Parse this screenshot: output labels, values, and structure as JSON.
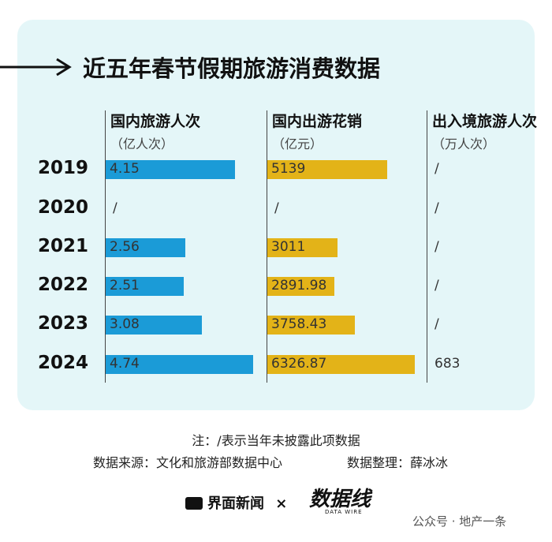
{
  "title": "近五年春节假期旅游消费数据",
  "chart_data": [
    {
      "type": "bar",
      "title": "国内旅游人次",
      "unit": "（亿人次）",
      "categories": [
        "2019",
        "2020",
        "2021",
        "2022",
        "2023",
        "2024"
      ],
      "values": [
        4.15,
        null,
        2.56,
        2.51,
        3.08,
        4.74
      ],
      "color": "#1b9bd7"
    },
    {
      "type": "bar",
      "title": "国内出游花销",
      "unit": "（亿元）",
      "values": [
        5139,
        null,
        3011,
        2891.98,
        3758.43,
        6326.87
      ],
      "color": "#e3b318"
    },
    {
      "type": "table",
      "title": "出入境旅游人次",
      "unit": "（万人次）",
      "values": [
        null,
        null,
        null,
        null,
        null,
        683
      ]
    }
  ],
  "missing_label": "/",
  "note": "注：/表示当年未披露此项数据",
  "source": "数据来源：文化和旅游部数据中心",
  "editor": "数据整理：薛冰冰",
  "footer": {
    "brand": "界面新闻",
    "separator": "×",
    "partner": "数据线",
    "partner_sub": "DATA WIRE",
    "account": "公众号 · 地产一条"
  }
}
